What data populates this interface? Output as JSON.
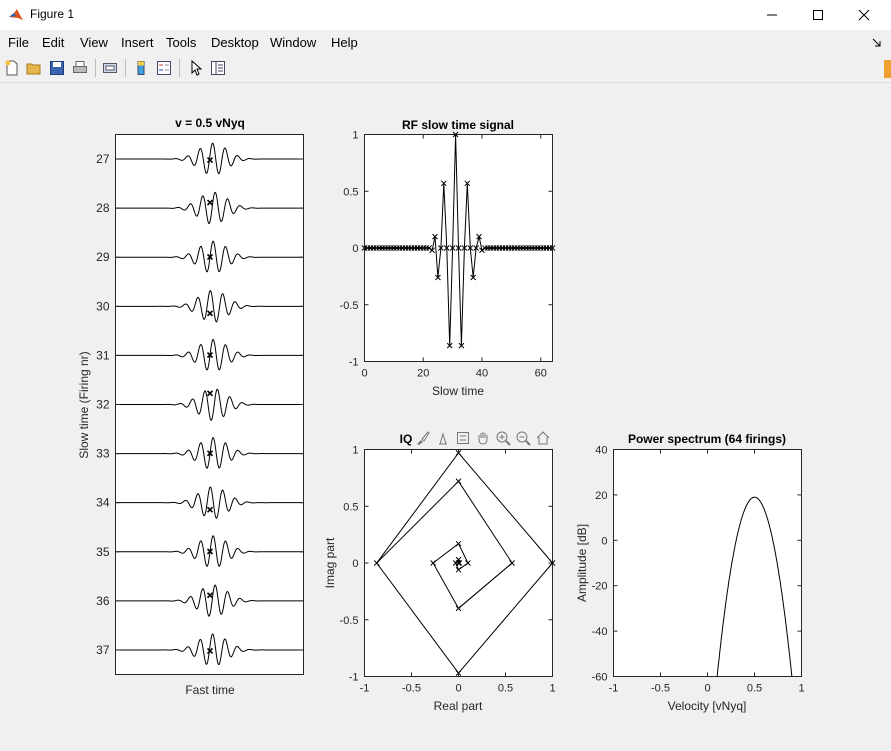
{
  "window": {
    "title": "Figure 1"
  },
  "menu": [
    "File",
    "Edit",
    "View",
    "Insert",
    "Tools",
    "Desktop",
    "Window",
    "Help"
  ],
  "toolbar_icons": [
    "new-figure-icon",
    "open-file-icon",
    "save-icon",
    "print-icon",
    "print-preview-icon",
    "colorbar-icon",
    "legend-icon",
    "pointer-icon",
    "property-inspector-icon"
  ],
  "axes_toolbar_icons": [
    "brush-icon",
    "data-tips-icon",
    "zoom-out-restore-icon",
    "pan-icon",
    "zoom-in-icon",
    "zoom-out-icon",
    "home-icon"
  ],
  "chart_data": [
    {
      "id": "waterfall",
      "type": "line",
      "title": "v = 0.5 vNyq",
      "xlabel": "Fast time",
      "ylabel": "Slow time (Firing nr)",
      "ylim": [
        26.5,
        37.5
      ],
      "yticks": [
        27,
        28,
        29,
        30,
        31,
        32,
        33,
        34,
        35,
        36,
        37
      ],
      "y_direction": "reversed",
      "series": [
        {
          "firing": 27,
          "sample_offset": 0.06
        },
        {
          "firing": 28,
          "sample_offset": -0.35
        },
        {
          "firing": 29,
          "sample_offset": -0.02
        },
        {
          "firing": 30,
          "sample_offset": 0.44
        },
        {
          "firing": 31,
          "sample_offset": -0.02
        },
        {
          "firing": 32,
          "sample_offset": -0.7
        },
        {
          "firing": 33,
          "sample_offset": -0.02
        },
        {
          "firing": 34,
          "sample_offset": 0.44
        },
        {
          "firing": 35,
          "sample_offset": -0.02
        },
        {
          "firing": 36,
          "sample_offset": -0.35
        },
        {
          "firing": 37,
          "sample_offset": 0.06
        }
      ]
    },
    {
      "id": "rf",
      "type": "line",
      "title": "RF slow time signal",
      "xlabel": "Slow time",
      "ylabel": "",
      "xlim": [
        0,
        64
      ],
      "ylim": [
        -1,
        1
      ],
      "xticks": [
        0,
        20,
        40,
        60
      ],
      "yticks": [
        1,
        0.5,
        0,
        -0.5,
        -1
      ],
      "x": [
        0,
        1,
        2,
        3,
        4,
        5,
        6,
        7,
        8,
        9,
        10,
        11,
        12,
        13,
        14,
        15,
        16,
        17,
        18,
        19,
        20,
        21,
        22,
        23,
        24,
        25,
        26,
        27,
        28,
        29,
        30,
        31,
        32,
        33,
        34,
        35,
        36,
        37,
        38,
        39,
        40,
        41,
        42,
        43,
        44,
        45,
        46,
        47,
        48,
        49,
        50,
        51,
        52,
        53,
        54,
        55,
        56,
        57,
        58,
        59,
        60,
        61,
        62,
        63,
        64
      ],
      "y": [
        0,
        0,
        0,
        0,
        0,
        0,
        0,
        0,
        0,
        0,
        0,
        0,
        0,
        0,
        0,
        0,
        0,
        0,
        0,
        0,
        0,
        0,
        0,
        -0.02,
        0.1,
        -0.26,
        0,
        0.57,
        0,
        -0.86,
        0,
        1,
        0,
        -0.86,
        0,
        0.57,
        0,
        -0.26,
        0,
        0.1,
        -0.02,
        0,
        0,
        0,
        0,
        0,
        0,
        0,
        0,
        0,
        0,
        0,
        0,
        0,
        0,
        0,
        0,
        0,
        0,
        0,
        0,
        0,
        0,
        0,
        0
      ]
    },
    {
      "id": "iq",
      "type": "line",
      "title": "IQ",
      "xlabel": "Real part",
      "ylabel": "Imag part",
      "xlim": [
        -1,
        1
      ],
      "ylim": [
        -1,
        1
      ],
      "xticks": [
        -1,
        -0.5,
        0,
        0.5,
        1
      ],
      "yticks": [
        1,
        0.5,
        0,
        -0.5,
        -1
      ],
      "x": [
        1,
        0,
        -0.87,
        0,
        0.57,
        0,
        -0.27,
        0,
        0.1,
        0,
        -0.03,
        0,
        0.01,
        0
      ],
      "y": [
        0,
        -0.97,
        0,
        0.72,
        0,
        -0.4,
        0,
        0.17,
        0,
        -0.06,
        0,
        0.03,
        0,
        0
      ]
    },
    {
      "id": "psd",
      "type": "line",
      "title": "Power spectrum (64 firings)",
      "xlabel": "Velocity [vNyq]",
      "ylabel": "Amplitude [dB]",
      "xlim": [
        -1,
        1
      ],
      "ylim": [
        -60,
        40
      ],
      "xticks": [
        -1,
        -0.5,
        0,
        0.5,
        1
      ],
      "yticks": [
        40,
        20,
        0,
        -20,
        -40,
        -60
      ],
      "peak_velocity": 0.5,
      "peak_db": 19
    }
  ]
}
